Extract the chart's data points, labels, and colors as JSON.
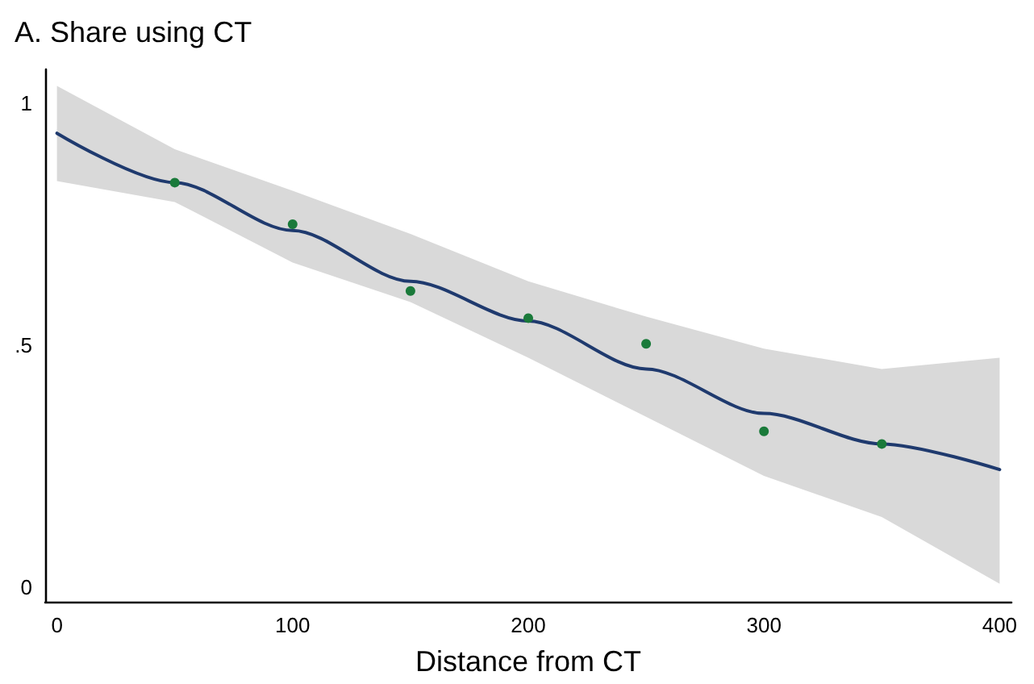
{
  "chart_data": {
    "type": "scatter",
    "title": "A. Share using CT",
    "xlabel": "Distance from CT",
    "xlim": [
      -5,
      405
    ],
    "ylim": [
      -0.03,
      1.07
    ],
    "xticks": [
      0,
      100,
      200,
      300,
      400
    ],
    "yticks": [
      0,
      {
        "value": 0.5,
        "label": ".5"
      },
      1
    ],
    "grid": false,
    "series": [
      {
        "type": "line",
        "color": "#1f3a6e",
        "marker": "none",
        "line_style": "solid",
        "x": [
          0,
          50,
          100,
          150,
          200,
          250,
          300,
          350,
          400
        ],
        "values": [
          0.938,
          0.836,
          0.737,
          0.632,
          0.55,
          0.451,
          0.359,
          0.296,
          0.243
        ],
        "lower": [
          0.839,
          0.796,
          0.671,
          0.589,
          0.474,
          0.352,
          0.23,
          0.145,
          0.007
        ],
        "upper": [
          1.036,
          0.905,
          0.819,
          0.73,
          0.632,
          0.559,
          0.493,
          0.451,
          0.474
        ]
      },
      {
        "color": "#1a7a3a",
        "marker": "circle",
        "x": [
          50,
          100,
          150,
          200,
          250,
          300,
          350
        ],
        "values": [
          0.836,
          0.75,
          0.612,
          0.556,
          0.503,
          0.322,
          0.296
        ]
      }
    ]
  }
}
